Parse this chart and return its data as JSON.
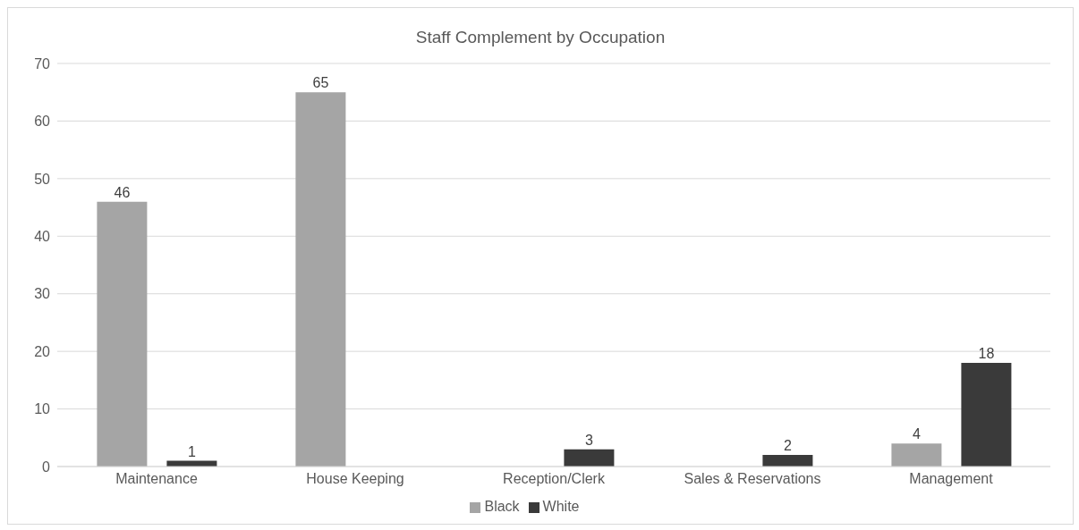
{
  "chart_data": {
    "type": "bar",
    "title": "Staff Complement by Occupation",
    "categories": [
      "Maintenance",
      "House Keeping",
      "Reception/Clerk",
      "Sales & Reservations",
      "Management"
    ],
    "series": [
      {
        "name": "Black",
        "color": "#a5a5a5",
        "values": [
          46,
          65,
          null,
          null,
          4
        ]
      },
      {
        "name": "White",
        "color": "#3a3a3a",
        "values": [
          1,
          null,
          3,
          2,
          18
        ]
      }
    ],
    "ylim": [
      0,
      70
    ],
    "yticks": [
      0,
      10,
      20,
      30,
      40,
      50,
      60,
      70
    ],
    "grid": "y",
    "legend": "bottom",
    "data_labels": true
  }
}
